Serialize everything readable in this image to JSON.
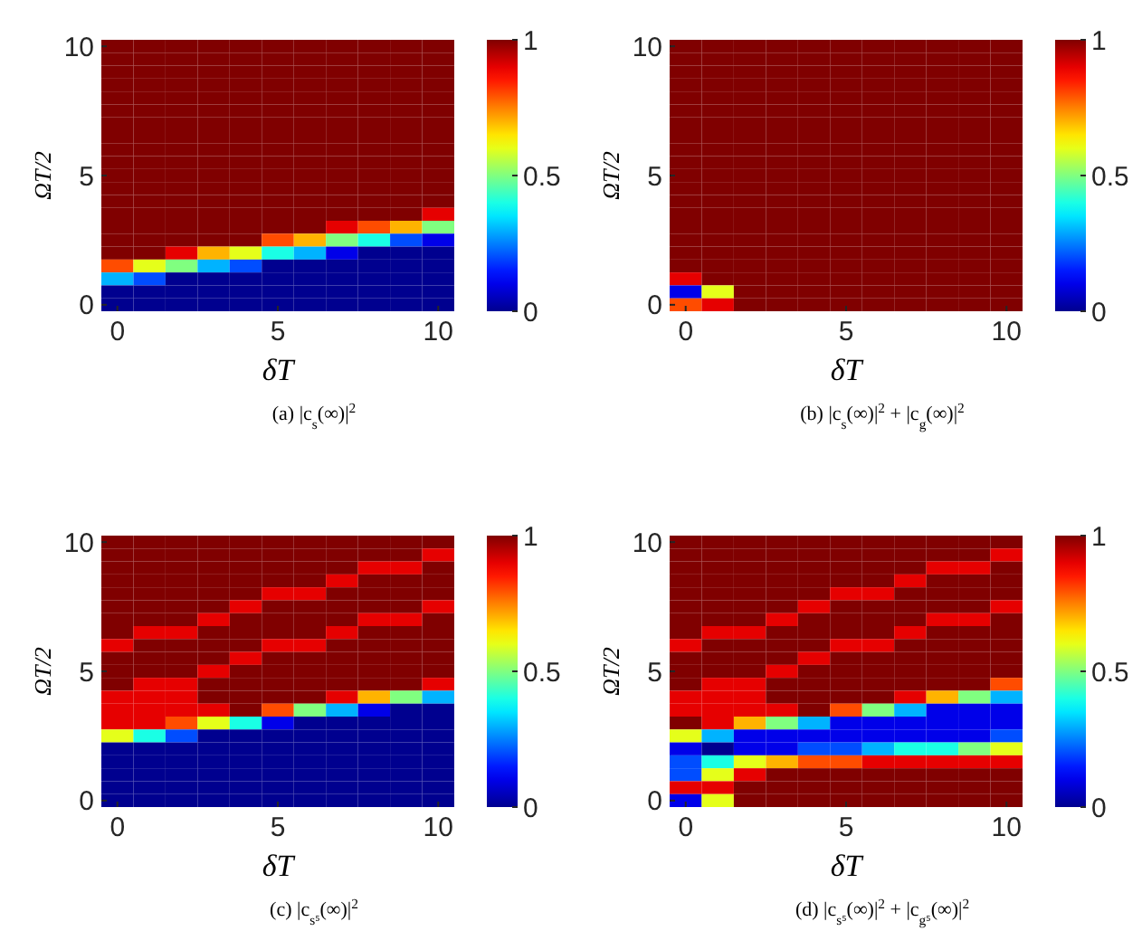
{
  "chart_data": [
    {
      "type": "heatmap",
      "xlabel": "δT",
      "ylabel": "ΩT/2",
      "annotations": [
        "(a) |c$_{s}$(∞)|$^{2}$"
      ],
      "categories": [
        "0",
        null,
        null,
        null,
        null,
        "5",
        null,
        null,
        null,
        null,
        "10"
      ],
      "y_categories": [
        "10",
        null,
        null,
        null,
        null,
        null,
        null,
        null,
        null,
        null,
        "5",
        null,
        null,
        null,
        null,
        null,
        null,
        null,
        null,
        null,
        "0"
      ],
      "clim": [
        0,
        1
      ],
      "cticks": [
        0,
        0.5,
        1
      ],
      "cells": [
        [
          1,
          1,
          1,
          1,
          1,
          1,
          1,
          1,
          1,
          1,
          1
        ],
        [
          1,
          1,
          1,
          1,
          1,
          1,
          1,
          1,
          1,
          1,
          1
        ],
        [
          1,
          1,
          1,
          1,
          1,
          1,
          1,
          1,
          1,
          1,
          1
        ],
        [
          1,
          1,
          1,
          1,
          1,
          1,
          1,
          1,
          1,
          1,
          1
        ],
        [
          1,
          1,
          1,
          1,
          1,
          1,
          1,
          1,
          1,
          1,
          1
        ],
        [
          1,
          1,
          1,
          1,
          1,
          1,
          1,
          1,
          1,
          1,
          1
        ],
        [
          1,
          1,
          1,
          1,
          1,
          1,
          1,
          1,
          1,
          1,
          1
        ],
        [
          1,
          1,
          1,
          1,
          1,
          1,
          1,
          1,
          1,
          1,
          1
        ],
        [
          1,
          1,
          1,
          1,
          1,
          1,
          1,
          1,
          1,
          1,
          1
        ],
        [
          1,
          1,
          1,
          1,
          1,
          1,
          1,
          1,
          1,
          1,
          1
        ],
        [
          1,
          1,
          1,
          1,
          1,
          1,
          1,
          1,
          1,
          1,
          1
        ],
        [
          1,
          1,
          1,
          1,
          1,
          1,
          1,
          1,
          1,
          1,
          1
        ],
        [
          1,
          1,
          1,
          1,
          1,
          1,
          1,
          1,
          1,
          1,
          1
        ],
        [
          1,
          1,
          1,
          1,
          1,
          1,
          1,
          1,
          1,
          1,
          0.9
        ],
        [
          1,
          1,
          1,
          1,
          1,
          1,
          1,
          0.9,
          0.8,
          0.7,
          0.5
        ],
        [
          1,
          1,
          1,
          1,
          1,
          0.8,
          0.7,
          0.5,
          0.4,
          0.2,
          0.1
        ],
        [
          1,
          1,
          0.9,
          0.7,
          0.6,
          0.4,
          0.3,
          0.1,
          0,
          0,
          0
        ],
        [
          0.8,
          0.6,
          0.5,
          0.3,
          0.2,
          0,
          0,
          0,
          0,
          0,
          0
        ],
        [
          0.3,
          0.2,
          0,
          0,
          0,
          0,
          0,
          0,
          0,
          0,
          0
        ],
        [
          0,
          0,
          0,
          0,
          0,
          0,
          0,
          0,
          0,
          0,
          0
        ],
        [
          0,
          0,
          0,
          0,
          0,
          0,
          0,
          0,
          0,
          0,
          0
        ]
      ]
    },
    {
      "type": "heatmap",
      "xlabel": "δT",
      "ylabel": "ΩT/2",
      "annotations": [
        "(b) |c$_{s}$(∞)|$^{2}$ + |c$_{g}$(∞)|$^{2}$"
      ],
      "categories": [
        "0",
        null,
        null,
        null,
        null,
        "5",
        null,
        null,
        null,
        null,
        "10"
      ],
      "y_categories": [
        "10",
        null,
        null,
        null,
        null,
        null,
        null,
        null,
        null,
        null,
        "5",
        null,
        null,
        null,
        null,
        null,
        null,
        null,
        null,
        null,
        "0"
      ],
      "clim": [
        0,
        1
      ],
      "cticks": [
        0,
        0.5,
        1
      ],
      "cells": [
        [
          1,
          1,
          1,
          1,
          1,
          1,
          1,
          1,
          1,
          1,
          1
        ],
        [
          1,
          1,
          1,
          1,
          1,
          1,
          1,
          1,
          1,
          1,
          1
        ],
        [
          1,
          1,
          1,
          1,
          1,
          1,
          1,
          1,
          1,
          1,
          1
        ],
        [
          1,
          1,
          1,
          1,
          1,
          1,
          1,
          1,
          1,
          1,
          1
        ],
        [
          1,
          1,
          1,
          1,
          1,
          1,
          1,
          1,
          1,
          1,
          1
        ],
        [
          1,
          1,
          1,
          1,
          1,
          1,
          1,
          1,
          1,
          1,
          1
        ],
        [
          1,
          1,
          1,
          1,
          1,
          1,
          1,
          1,
          1,
          1,
          1
        ],
        [
          1,
          1,
          1,
          1,
          1,
          1,
          1,
          1,
          1,
          1,
          1
        ],
        [
          1,
          1,
          1,
          1,
          1,
          1,
          1,
          1,
          1,
          1,
          1
        ],
        [
          1,
          1,
          1,
          1,
          1,
          1,
          1,
          1,
          1,
          1,
          1
        ],
        [
          1,
          1,
          1,
          1,
          1,
          1,
          1,
          1,
          1,
          1,
          1
        ],
        [
          1,
          1,
          1,
          1,
          1,
          1,
          1,
          1,
          1,
          1,
          1
        ],
        [
          1,
          1,
          1,
          1,
          1,
          1,
          1,
          1,
          1,
          1,
          1
        ],
        [
          1,
          1,
          1,
          1,
          1,
          1,
          1,
          1,
          1,
          1,
          1
        ],
        [
          1,
          1,
          1,
          1,
          1,
          1,
          1,
          1,
          1,
          1,
          1
        ],
        [
          1,
          1,
          1,
          1,
          1,
          1,
          1,
          1,
          1,
          1,
          1
        ],
        [
          1,
          1,
          1,
          1,
          1,
          1,
          1,
          1,
          1,
          1,
          1
        ],
        [
          1,
          1,
          1,
          1,
          1,
          1,
          1,
          1,
          1,
          1,
          1
        ],
        [
          0.9,
          1,
          1,
          1,
          1,
          1,
          1,
          1,
          1,
          1,
          1
        ],
        [
          0.1,
          0.6,
          1,
          1,
          1,
          1,
          1,
          1,
          1,
          1,
          1
        ],
        [
          0.8,
          0.9,
          1,
          1,
          1,
          1,
          1,
          1,
          1,
          1,
          1
        ]
      ]
    },
    {
      "type": "heatmap",
      "xlabel": "δT",
      "ylabel": "ΩT/2",
      "annotations": [
        "(c) |c$_{s⁵}$(∞)|$^{2}$"
      ],
      "categories": [
        "0",
        null,
        null,
        null,
        null,
        "5",
        null,
        null,
        null,
        null,
        "10"
      ],
      "y_categories": [
        "10",
        null,
        null,
        null,
        null,
        null,
        null,
        null,
        null,
        null,
        "5",
        null,
        null,
        null,
        null,
        null,
        null,
        null,
        null,
        null,
        "0"
      ],
      "clim": [
        0,
        1
      ],
      "cticks": [
        0,
        0.5,
        1
      ],
      "cells": [
        [
          1,
          1,
          1,
          1,
          1,
          1,
          1,
          1,
          1,
          1,
          1
        ],
        [
          1,
          1,
          1,
          1,
          1,
          1,
          1,
          1,
          1,
          1,
          0.9
        ],
        [
          1,
          1,
          1,
          1,
          1,
          1,
          1,
          1,
          0.9,
          0.9,
          1
        ],
        [
          1,
          1,
          1,
          1,
          1,
          1,
          1,
          0.9,
          1,
          1,
          1
        ],
        [
          1,
          1,
          1,
          1,
          1,
          0.9,
          0.9,
          1,
          1,
          1,
          1
        ],
        [
          1,
          1,
          1,
          1,
          0.9,
          1,
          1,
          1,
          1,
          1,
          0.9
        ],
        [
          1,
          1,
          1,
          0.9,
          1,
          1,
          1,
          1,
          0.9,
          0.9,
          1
        ],
        [
          1,
          0.9,
          0.9,
          1,
          1,
          1,
          1,
          0.9,
          1,
          1,
          1
        ],
        [
          0.9,
          1,
          1,
          1,
          1,
          0.9,
          0.9,
          1,
          1,
          1,
          1
        ],
        [
          1,
          1,
          1,
          1,
          0.9,
          1,
          1,
          1,
          1,
          1,
          1
        ],
        [
          1,
          1,
          1,
          0.9,
          1,
          1,
          1,
          1,
          1,
          1,
          1
        ],
        [
          1,
          0.9,
          0.9,
          1,
          1,
          1,
          1,
          1,
          1,
          1,
          0.9
        ],
        [
          0.9,
          0.9,
          0.9,
          1,
          1,
          1,
          1,
          0.9,
          0.7,
          0.5,
          0.3
        ],
        [
          0.9,
          0.9,
          0.9,
          0.9,
          1,
          0.8,
          0.5,
          0.3,
          0.1,
          0,
          0
        ],
        [
          0.9,
          0.9,
          0.8,
          0.6,
          0.4,
          0.1,
          0,
          0,
          0,
          0,
          0
        ],
        [
          0.6,
          0.4,
          0.2,
          0,
          0,
          0,
          0,
          0,
          0,
          0,
          0
        ],
        [
          0,
          0,
          0,
          0,
          0,
          0,
          0,
          0,
          0,
          0,
          0
        ],
        [
          0,
          0,
          0,
          0,
          0,
          0,
          0,
          0,
          0,
          0,
          0
        ],
        [
          0,
          0,
          0,
          0,
          0,
          0,
          0,
          0,
          0,
          0,
          0
        ],
        [
          0,
          0,
          0,
          0,
          0,
          0,
          0,
          0,
          0,
          0,
          0
        ],
        [
          0,
          0,
          0,
          0,
          0,
          0,
          0,
          0,
          0,
          0,
          0
        ]
      ]
    },
    {
      "type": "heatmap",
      "xlabel": "δT",
      "ylabel": "ΩT/2",
      "annotations": [
        "(d) |c$_{s⁵}$(∞)|$^{2}$ + |c$_{g⁵}$(∞)|$^{2}$"
      ],
      "categories": [
        "0",
        null,
        null,
        null,
        null,
        "5",
        null,
        null,
        null,
        null,
        "10"
      ],
      "y_categories": [
        "10",
        null,
        null,
        null,
        null,
        null,
        null,
        null,
        null,
        null,
        "5",
        null,
        null,
        null,
        null,
        null,
        null,
        null,
        null,
        null,
        "0"
      ],
      "clim": [
        0,
        1
      ],
      "cticks": [
        0,
        0.5,
        1
      ],
      "cells": [
        [
          1,
          1,
          1,
          1,
          1,
          1,
          1,
          1,
          1,
          1,
          1
        ],
        [
          1,
          1,
          1,
          1,
          1,
          1,
          1,
          1,
          1,
          1,
          0.9
        ],
        [
          1,
          1,
          1,
          1,
          1,
          1,
          1,
          1,
          0.9,
          0.9,
          1
        ],
        [
          1,
          1,
          1,
          1,
          1,
          1,
          1,
          0.9,
          1,
          1,
          1
        ],
        [
          1,
          1,
          1,
          1,
          1,
          0.9,
          0.9,
          1,
          1,
          1,
          1
        ],
        [
          1,
          1,
          1,
          1,
          0.9,
          1,
          1,
          1,
          1,
          1,
          0.9
        ],
        [
          1,
          1,
          1,
          0.9,
          1,
          1,
          1,
          1,
          0.9,
          0.9,
          1
        ],
        [
          1,
          0.9,
          0.9,
          1,
          1,
          1,
          1,
          0.9,
          1,
          1,
          1
        ],
        [
          0.9,
          1,
          1,
          1,
          1,
          0.9,
          0.9,
          1,
          1,
          1,
          1
        ],
        [
          1,
          1,
          1,
          1,
          0.9,
          1,
          1,
          1,
          1,
          1,
          1
        ],
        [
          1,
          1,
          1,
          0.9,
          1,
          1,
          1,
          1,
          1,
          1,
          1
        ],
        [
          1,
          0.9,
          0.9,
          1,
          1,
          1,
          1,
          1,
          1,
          1,
          0.8
        ],
        [
          0.9,
          0.9,
          0.9,
          1,
          1,
          1,
          1,
          0.9,
          0.7,
          0.5,
          0.3
        ],
        [
          0.9,
          0.9,
          0.9,
          0.9,
          1,
          0.8,
          0.5,
          0.3,
          0.1,
          0.1,
          0.1
        ],
        [
          1,
          0.9,
          0.7,
          0.5,
          0.3,
          0.1,
          0.1,
          0.1,
          0.1,
          0.1,
          0.1
        ],
        [
          0.6,
          0.3,
          0.1,
          0.1,
          0.1,
          0.1,
          0.1,
          0.1,
          0.1,
          0.1,
          0.2
        ],
        [
          0.1,
          0,
          0.1,
          0.1,
          0.2,
          0.2,
          0.3,
          0.4,
          0.4,
          0.5,
          0.6
        ],
        [
          0.2,
          0.4,
          0.6,
          0.7,
          0.8,
          0.8,
          0.9,
          0.9,
          0.9,
          0.9,
          0.9
        ],
        [
          0.2,
          0.6,
          0.9,
          1,
          1,
          1,
          1,
          1,
          1,
          1,
          1
        ],
        [
          0.9,
          0.9,
          1,
          1,
          1,
          1,
          1,
          1,
          1,
          1,
          1
        ],
        [
          0.1,
          0.6,
          1,
          1,
          1,
          1,
          1,
          1,
          1,
          1,
          1
        ]
      ]
    }
  ]
}
